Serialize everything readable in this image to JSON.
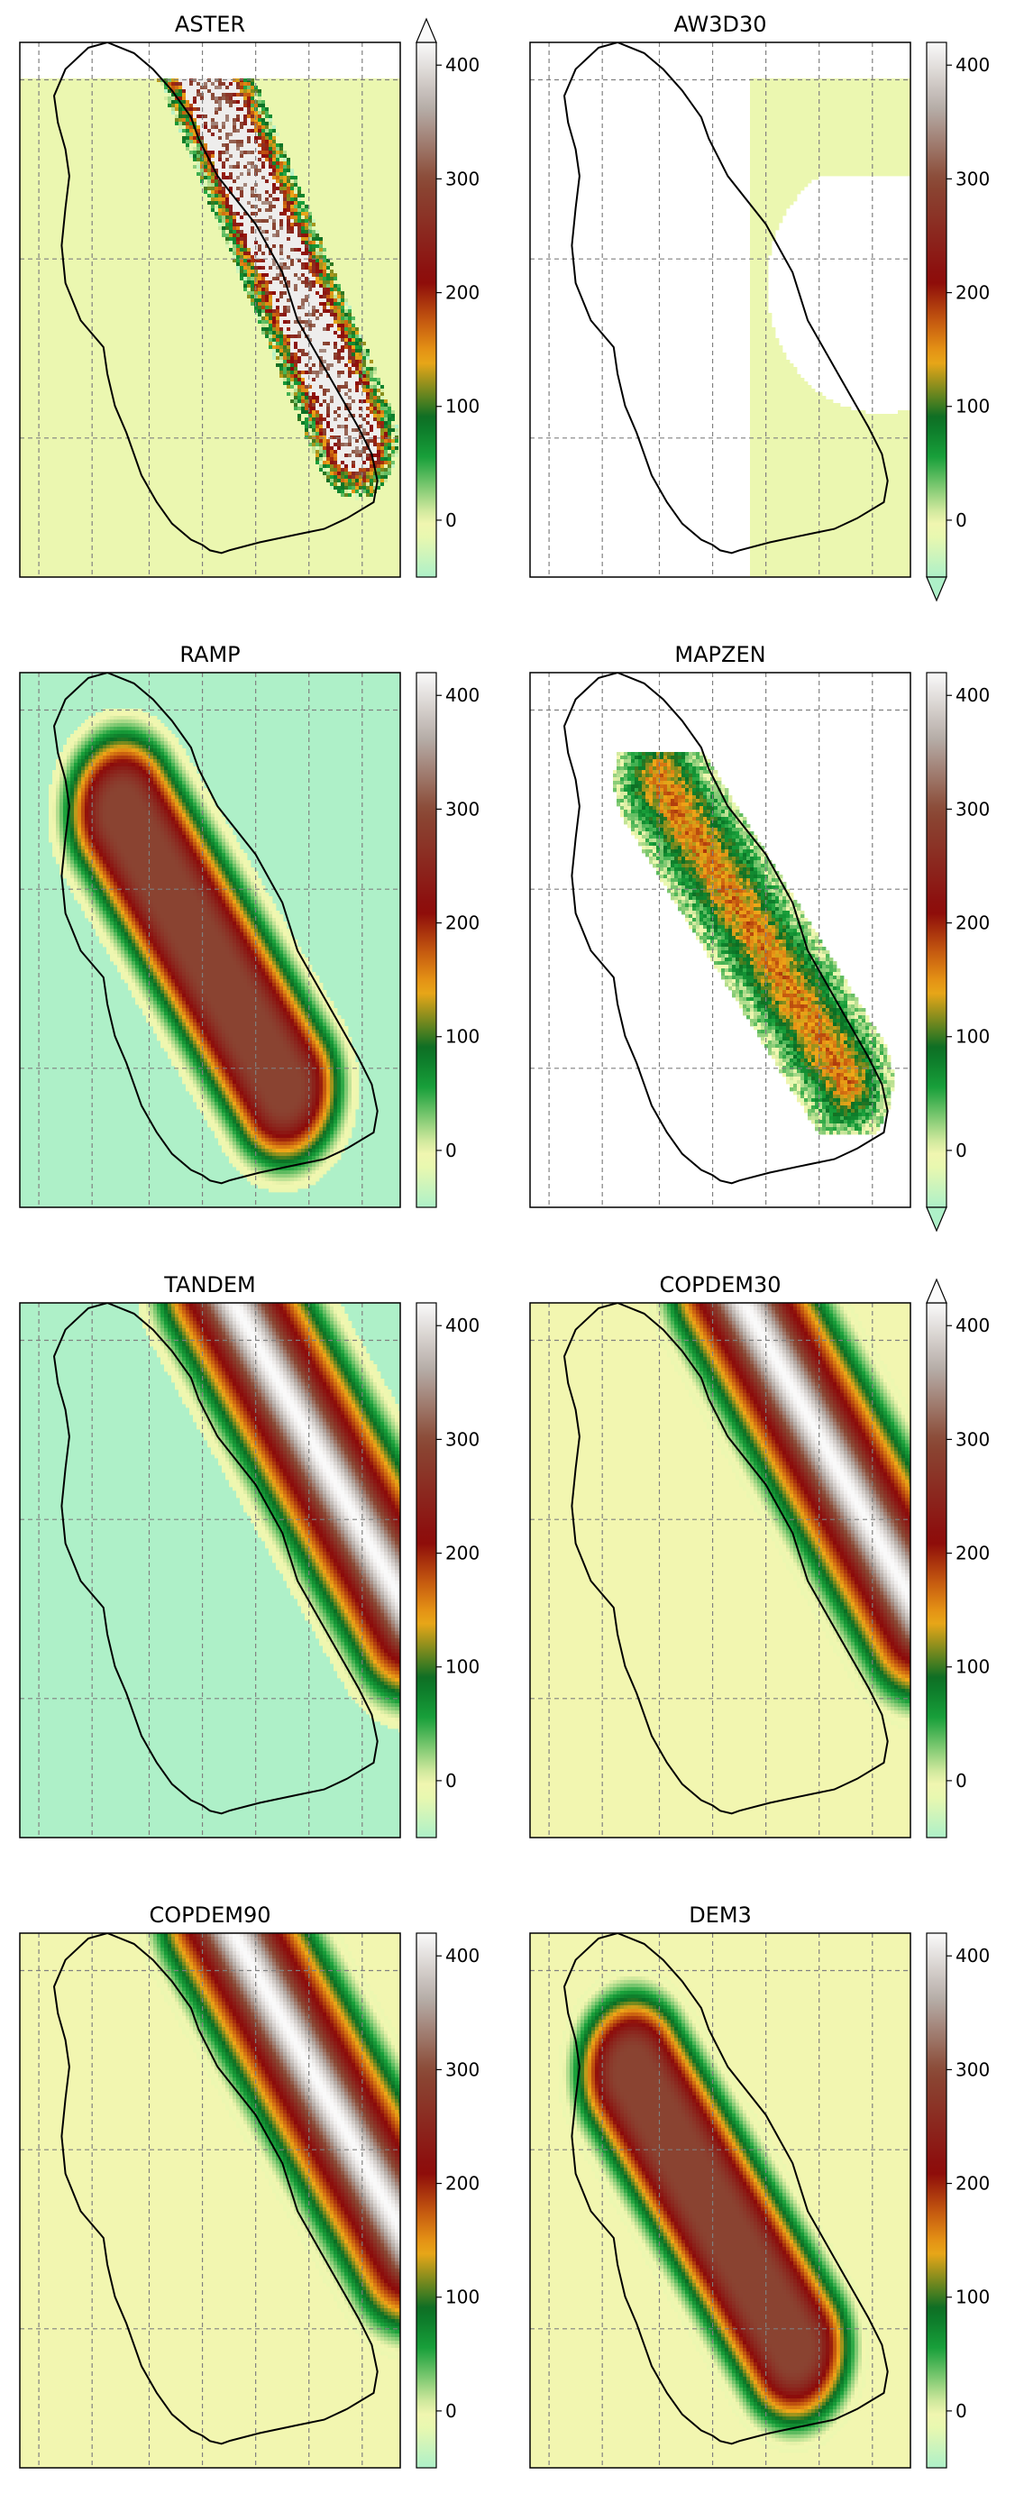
{
  "figure": {
    "panel_titles": [
      "ASTER",
      "AW3D30",
      "RAMP",
      "MAPZEN",
      "TANDEM",
      "COPDEM30",
      "COPDEM90",
      "DEM3"
    ]
  },
  "chart_data": [
    {
      "type": "heatmap",
      "title": "ASTER",
      "colorbar": {
        "ticks": [
          0,
          100,
          200,
          300,
          400
        ],
        "vmin": -50,
        "vmax": 420,
        "extend": "max"
      },
      "pattern": "rough-ridge"
    },
    {
      "type": "heatmap",
      "title": "AW3D30",
      "colorbar": {
        "ticks": [
          0,
          100,
          200,
          300,
          400
        ],
        "vmin": -50,
        "vmax": 420,
        "extend": "min"
      },
      "pattern": "mostly-nodata"
    },
    {
      "type": "heatmap",
      "title": "RAMP",
      "colorbar": {
        "ticks": [
          0,
          100,
          200,
          300,
          400
        ],
        "vmin": -50,
        "vmax": 420,
        "extend": "neither"
      },
      "pattern": "smooth-dome",
      "background": "light-green"
    },
    {
      "type": "heatmap",
      "title": "MAPZEN",
      "colorbar": {
        "ticks": [
          0,
          100,
          200,
          300,
          400
        ],
        "vmin": -50,
        "vmax": 420,
        "extend": "min"
      },
      "pattern": "low-patchy"
    },
    {
      "type": "heatmap",
      "title": "TANDEM",
      "colorbar": {
        "ticks": [
          0,
          100,
          200,
          300,
          400
        ],
        "vmin": -50,
        "vmax": 420,
        "extend": "neither"
      },
      "pattern": "offset-ridge",
      "background": "light-green"
    },
    {
      "type": "heatmap",
      "title": "COPDEM30",
      "colorbar": {
        "ticks": [
          0,
          100,
          200,
          300,
          400
        ],
        "vmin": -50,
        "vmax": 420,
        "extend": "max"
      },
      "pattern": "offset-ridge",
      "background": "light-yellow"
    },
    {
      "type": "heatmap",
      "title": "COPDEM90",
      "colorbar": {
        "ticks": [
          0,
          100,
          200,
          300,
          400
        ],
        "vmin": -50,
        "vmax": 420,
        "extend": "neither"
      },
      "pattern": "offset-ridge",
      "background": "light-yellow"
    },
    {
      "type": "heatmap",
      "title": "DEM3",
      "colorbar": {
        "ticks": [
          0,
          100,
          200,
          300,
          400
        ],
        "vmin": -50,
        "vmax": 420,
        "extend": "neither"
      },
      "pattern": "smooth-dome",
      "background": "light-yellow"
    }
  ],
  "style": {
    "colormap": [
      "#aef0c8",
      "#e8f8b0",
      "#f2f6b0",
      "#18a03a",
      "#0a6e24",
      "#f0a818",
      "#cc6410",
      "#8c0a0a",
      "#8a4a36",
      "#b4aaa4",
      "#fafafa"
    ],
    "gridline_color": "#808080",
    "outline_color": "#000000"
  }
}
